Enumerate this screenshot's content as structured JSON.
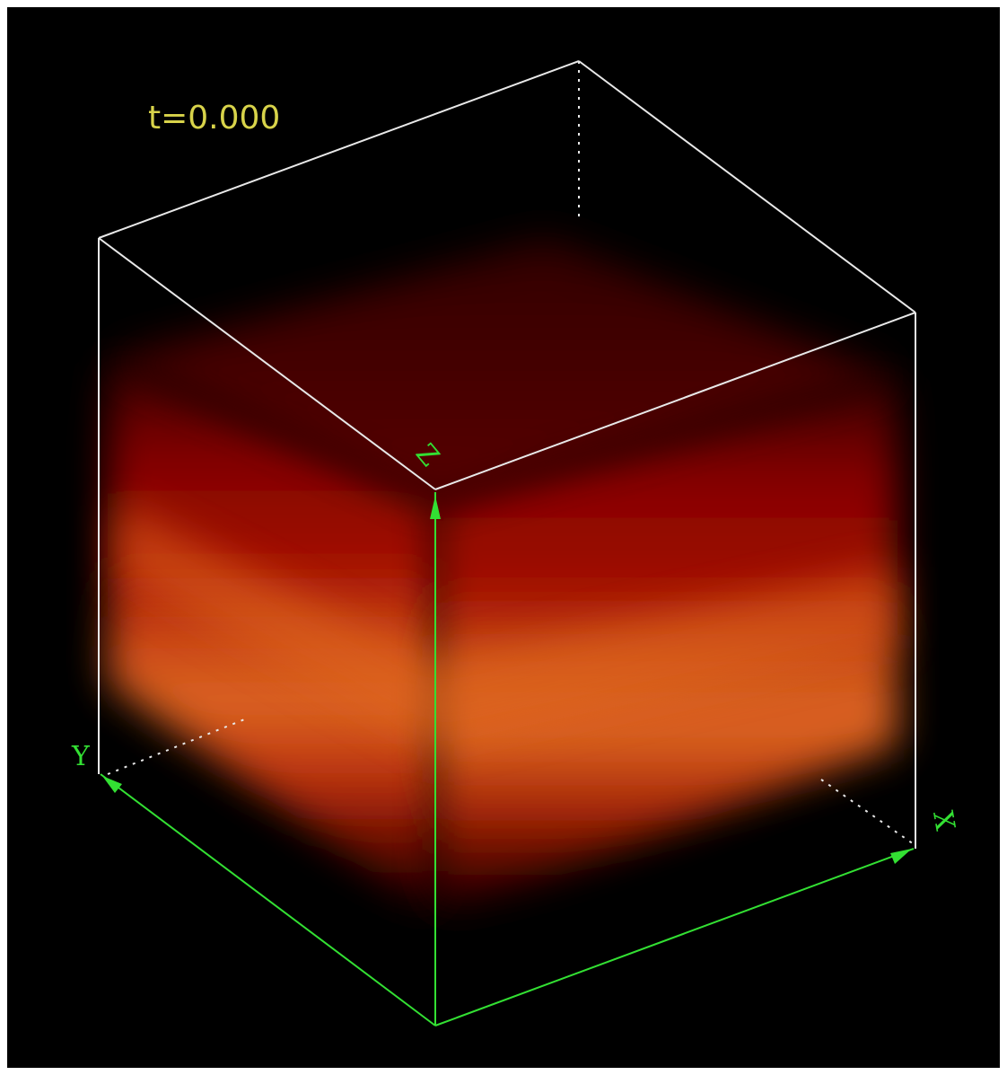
{
  "viewer": {
    "timestamp": "t=0.000",
    "axes": {
      "x_label": "X",
      "y_label": "Y",
      "z_label": "Z"
    }
  },
  "colors": {
    "background": "#000000",
    "box_edges": "#e8e8e8",
    "axes": "#33e033",
    "timestamp_text": "#d8d34a",
    "volume_dark": "#4a0000",
    "volume_mid": "#a00800",
    "volume_bright": "#e8601a"
  }
}
